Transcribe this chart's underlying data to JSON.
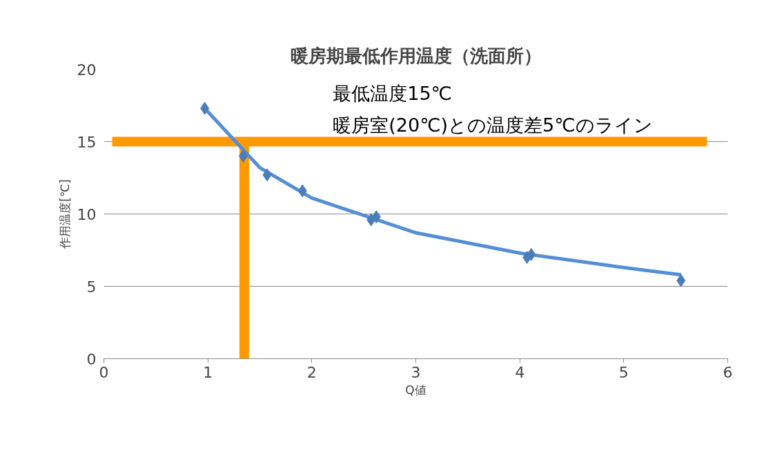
{
  "chart_data": {
    "type": "scatter",
    "title": "暖房期最低作用温度（洗面所）",
    "xlabel": "Q値",
    "ylabel": "作用温度[℃]",
    "xlim": [
      0,
      6
    ],
    "ylim": [
      0,
      20
    ],
    "xticks": [
      0,
      1,
      2,
      3,
      4,
      5,
      6
    ],
    "yticks": [
      0,
      5,
      10,
      15,
      20
    ],
    "grid": "y",
    "marker": "diamond",
    "series": [
      {
        "type": "line",
        "color": "#ff9900",
        "marker": "none",
        "x": [
          0.08,
          5.8
        ],
        "values": [
          15,
          15
        ]
      },
      {
        "type": "line",
        "color": "#ff9900",
        "marker": "none",
        "x": [
          1.35,
          1.35
        ],
        "values": [
          0,
          15
        ]
      },
      {
        "type": "line",
        "color": "#558ed5",
        "marker": "none",
        "x": [
          0.97,
          1.5,
          2,
          3,
          4,
          5,
          5.55
        ],
        "values": [
          17.3,
          13.2,
          11.1,
          8.7,
          7.3,
          6.3,
          5.8
        ]
      },
      {
        "color": "#4a7ebb",
        "x": [
          0.97,
          1.34,
          1.57,
          1.91,
          2.57,
          2.62,
          4.07,
          4.11,
          5.55
        ],
        "values": [
          17.3,
          14.0,
          12.7,
          11.6,
          9.6,
          9.8,
          7.0,
          7.2,
          5.4
        ]
      }
    ],
    "annotations": [
      "最低温度15℃",
      "暖房室(20℃)との温度差5℃のライン"
    ]
  }
}
